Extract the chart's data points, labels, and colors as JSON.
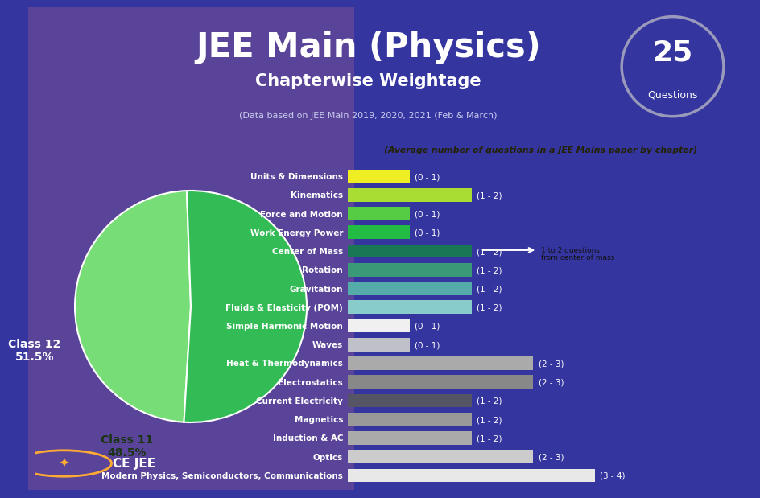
{
  "title_main": "JEE Main (Physics)",
  "title_sub": "Chapterwise Weightage",
  "title_sub2": "(Data based on JEE Main 2019, 2020, 2021 (Feb & March)",
  "bg_color_left": "#5a4499",
  "bg_color_right": "#3535a0",
  "header_bg": "#3535a0",
  "questions_badge": "25",
  "questions_label": "Questions",
  "pie_class11": 48.5,
  "pie_class12": 51.5,
  "pie_color_class11": "#77dd77",
  "pie_color_class12": "#33bb55",
  "categories": [
    "Units & Dimensions",
    "Kinematics",
    "Force and Motion",
    "Work Energy Power",
    "Center of Mass",
    "Rotation",
    "Gravitation",
    "Fluids & Elasticity (POM)",
    "Simple Harmonic Motion",
    "Waves",
    "Heat & Thermodynamics",
    "Electrostatics",
    "Current Electricity",
    "Magnetics",
    "Induction & AC",
    "Optics",
    "Modern Physics, Semiconductors, Communications"
  ],
  "bar_values": [
    1,
    2,
    1,
    1,
    2,
    2,
    2,
    2,
    1,
    1,
    3,
    3,
    2,
    2,
    2,
    3,
    4
  ],
  "bar_labels": [
    "(0 - 1)",
    "(1 - 2)",
    "(0 - 1)",
    "(0 - 1)",
    "(1 - 2)",
    "(1 - 2)",
    "(1 - 2)",
    "(1 - 2)",
    "(0 - 1)",
    "(0 - 1)",
    "(2 - 3)",
    "(2 - 3)",
    "(1 - 2)",
    "(1 - 2)",
    "(1 - 2)",
    "(2 - 3)",
    "(3 - 4)"
  ],
  "bar_colors": [
    "#eeee22",
    "#aadd33",
    "#55cc44",
    "#22bb44",
    "#1a7755",
    "#3a9977",
    "#55aaaa",
    "#88cccc",
    "#f0f0f0",
    "#c0c0c8",
    "#aaaaaa",
    "#888888",
    "#555566",
    "#999999",
    "#aaaaaa",
    "#cccccc",
    "#e8e8e8"
  ],
  "legend_bg": "#f0c020",
  "legend_text": "(Average number of questions in a JEE Mains paper by chapter)",
  "annotation_line1": "1 to 2 questions",
  "annotation_line2": "from center of mass"
}
